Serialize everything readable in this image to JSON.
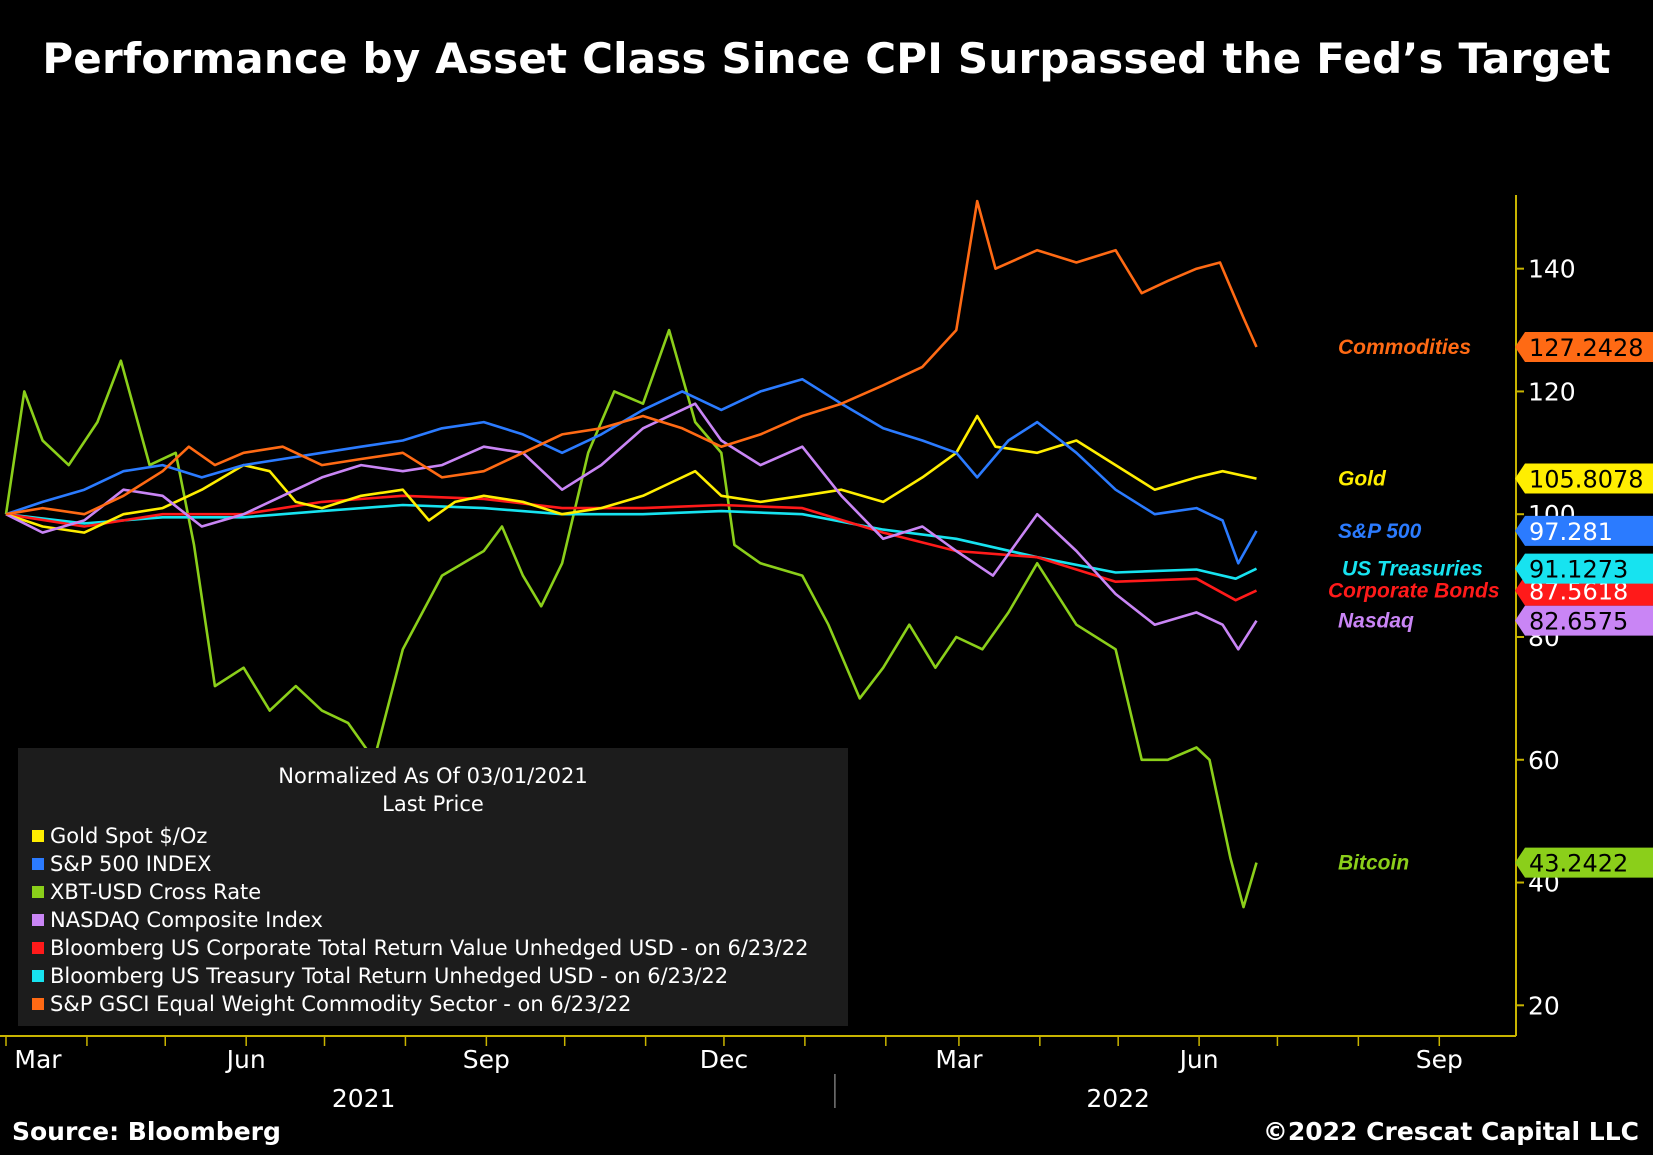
{
  "chart_data": {
    "type": "line",
    "title": "Performance by Asset Class Since CPI Surpassed the Fed’s Target",
    "y_axis": {
      "side": "right",
      "ylim": [
        15,
        152
      ],
      "ticks": [
        20,
        40,
        60,
        80,
        100,
        120,
        140
      ]
    },
    "x_axis": {
      "start": "2021-03-01",
      "end": "2022-09-30",
      "month_ticks": [
        {
          "date": "2021-03-01",
          "label": "Mar"
        },
        {
          "date": "2021-06-01",
          "label": "Jun"
        },
        {
          "date": "2021-09-01",
          "label": "Sep"
        },
        {
          "date": "2021-12-01",
          "label": "Dec"
        },
        {
          "date": "2022-03-01",
          "label": "Mar"
        },
        {
          "date": "2022-06-01",
          "label": "Jun"
        },
        {
          "date": "2022-09-01",
          "label": "Sep"
        }
      ],
      "years": [
        {
          "date": "2021-07-16",
          "label": "2021"
        },
        {
          "date": "2022-05-01",
          "label": "2022"
        }
      ],
      "year_divider": "2022-01-01"
    },
    "legend": {
      "header": [
        "Normalized As Of 03/01/2021",
        "Last Price"
      ],
      "placement": "bottom-left"
    },
    "series": [
      {
        "key": "gold",
        "legend": "Gold Spot $/Oz",
        "label": "Gold",
        "last_value": "105.8078",
        "color": "#ffee00",
        "tag_text_color": "#000000",
        "points": [
          [
            "2021-03-01",
            100
          ],
          [
            "2021-03-15",
            98
          ],
          [
            "2021-03-31",
            97
          ],
          [
            "2021-04-15",
            100
          ],
          [
            "2021-04-30",
            101
          ],
          [
            "2021-05-15",
            104
          ],
          [
            "2021-05-31",
            108
          ],
          [
            "2021-06-10",
            107
          ],
          [
            "2021-06-20",
            102
          ],
          [
            "2021-06-30",
            101
          ],
          [
            "2021-07-15",
            103
          ],
          [
            "2021-07-31",
            104
          ],
          [
            "2021-08-10",
            99
          ],
          [
            "2021-08-20",
            102
          ],
          [
            "2021-08-31",
            103
          ],
          [
            "2021-09-15",
            102
          ],
          [
            "2021-09-30",
            100
          ],
          [
            "2021-10-15",
            101
          ],
          [
            "2021-10-31",
            103
          ],
          [
            "2021-11-10",
            105
          ],
          [
            "2021-11-20",
            107
          ],
          [
            "2021-11-30",
            103
          ],
          [
            "2021-12-15",
            102
          ],
          [
            "2021-12-31",
            103
          ],
          [
            "2022-01-15",
            104
          ],
          [
            "2022-01-31",
            102
          ],
          [
            "2022-02-15",
            106
          ],
          [
            "2022-02-28",
            110
          ],
          [
            "2022-03-08",
            116
          ],
          [
            "2022-03-15",
            111
          ],
          [
            "2022-03-31",
            110
          ],
          [
            "2022-04-15",
            112
          ],
          [
            "2022-04-30",
            108
          ],
          [
            "2022-05-15",
            104
          ],
          [
            "2022-05-31",
            106
          ],
          [
            "2022-06-10",
            107
          ],
          [
            "2022-06-23",
            105.8078
          ]
        ]
      },
      {
        "key": "sp500",
        "legend": "S&P 500 INDEX",
        "label": "S&P 500",
        "last_value": "97.281",
        "color": "#2b7bff",
        "tag_text_color": "#ffffff",
        "points": [
          [
            "2021-03-01",
            100
          ],
          [
            "2021-03-15",
            102
          ],
          [
            "2021-03-31",
            104
          ],
          [
            "2021-04-15",
            107
          ],
          [
            "2021-04-30",
            108
          ],
          [
            "2021-05-15",
            106
          ],
          [
            "2021-05-31",
            108
          ],
          [
            "2021-06-15",
            109
          ],
          [
            "2021-06-30",
            110
          ],
          [
            "2021-07-15",
            111
          ],
          [
            "2021-07-31",
            112
          ],
          [
            "2021-08-15",
            114
          ],
          [
            "2021-08-31",
            115
          ],
          [
            "2021-09-15",
            113
          ],
          [
            "2021-09-30",
            110
          ],
          [
            "2021-10-15",
            113
          ],
          [
            "2021-10-31",
            117
          ],
          [
            "2021-11-15",
            120
          ],
          [
            "2021-11-30",
            117
          ],
          [
            "2021-12-15",
            120
          ],
          [
            "2021-12-31",
            122
          ],
          [
            "2022-01-15",
            118
          ],
          [
            "2022-01-31",
            114
          ],
          [
            "2022-02-15",
            112
          ],
          [
            "2022-02-28",
            110
          ],
          [
            "2022-03-08",
            106
          ],
          [
            "2022-03-20",
            112
          ],
          [
            "2022-03-31",
            115
          ],
          [
            "2022-04-15",
            110
          ],
          [
            "2022-04-30",
            104
          ],
          [
            "2022-05-15",
            100
          ],
          [
            "2022-05-31",
            101
          ],
          [
            "2022-06-10",
            99
          ],
          [
            "2022-06-16",
            92
          ],
          [
            "2022-06-23",
            97.281
          ]
        ]
      },
      {
        "key": "bitcoin",
        "legend": "XBT-USD Cross Rate",
        "label": "Bitcoin",
        "last_value": "43.2422",
        "color": "#8bcf1a",
        "tag_text_color": "#000000",
        "points": [
          [
            "2021-03-01",
            100
          ],
          [
            "2021-03-08",
            120
          ],
          [
            "2021-03-15",
            112
          ],
          [
            "2021-03-25",
            108
          ],
          [
            "2021-04-05",
            115
          ],
          [
            "2021-04-14",
            125
          ],
          [
            "2021-04-25",
            108
          ],
          [
            "2021-05-05",
            110
          ],
          [
            "2021-05-12",
            95
          ],
          [
            "2021-05-20",
            72
          ],
          [
            "2021-05-31",
            75
          ],
          [
            "2021-06-10",
            68
          ],
          [
            "2021-06-20",
            72
          ],
          [
            "2021-06-30",
            68
          ],
          [
            "2021-07-10",
            66
          ],
          [
            "2021-07-20",
            60
          ],
          [
            "2021-07-31",
            78
          ],
          [
            "2021-08-15",
            90
          ],
          [
            "2021-08-31",
            94
          ],
          [
            "2021-09-07",
            98
          ],
          [
            "2021-09-15",
            90
          ],
          [
            "2021-09-22",
            85
          ],
          [
            "2021-09-30",
            92
          ],
          [
            "2021-10-10",
            110
          ],
          [
            "2021-10-20",
            120
          ],
          [
            "2021-10-31",
            118
          ],
          [
            "2021-11-10",
            130
          ],
          [
            "2021-11-20",
            115
          ],
          [
            "2021-11-30",
            110
          ],
          [
            "2021-12-05",
            95
          ],
          [
            "2021-12-15",
            92
          ],
          [
            "2021-12-31",
            90
          ],
          [
            "2022-01-10",
            82
          ],
          [
            "2022-01-22",
            70
          ],
          [
            "2022-01-31",
            75
          ],
          [
            "2022-02-10",
            82
          ],
          [
            "2022-02-20",
            75
          ],
          [
            "2022-02-28",
            80
          ],
          [
            "2022-03-10",
            78
          ],
          [
            "2022-03-20",
            84
          ],
          [
            "2022-03-31",
            92
          ],
          [
            "2022-04-15",
            82
          ],
          [
            "2022-04-30",
            78
          ],
          [
            "2022-05-10",
            60
          ],
          [
            "2022-05-20",
            60
          ],
          [
            "2022-05-31",
            62
          ],
          [
            "2022-06-05",
            60
          ],
          [
            "2022-06-13",
            44
          ],
          [
            "2022-06-18",
            36
          ],
          [
            "2022-06-23",
            43.2422
          ]
        ]
      },
      {
        "key": "nasdaq",
        "legend": "NASDAQ Composite Index",
        "label": "Nasdaq",
        "last_value": "82.6575",
        "color": "#c985f5",
        "tag_text_color": "#000000",
        "points": [
          [
            "2021-03-01",
            100
          ],
          [
            "2021-03-15",
            97
          ],
          [
            "2021-03-31",
            99
          ],
          [
            "2021-04-15",
            104
          ],
          [
            "2021-04-30",
            103
          ],
          [
            "2021-05-15",
            98
          ],
          [
            "2021-05-31",
            100
          ],
          [
            "2021-06-15",
            103
          ],
          [
            "2021-06-30",
            106
          ],
          [
            "2021-07-15",
            108
          ],
          [
            "2021-07-31",
            107
          ],
          [
            "2021-08-15",
            108
          ],
          [
            "2021-08-31",
            111
          ],
          [
            "2021-09-15",
            110
          ],
          [
            "2021-09-30",
            104
          ],
          [
            "2021-10-15",
            108
          ],
          [
            "2021-10-31",
            114
          ],
          [
            "2021-11-20",
            118
          ],
          [
            "2021-11-30",
            112
          ],
          [
            "2021-12-15",
            108
          ],
          [
            "2021-12-31",
            111
          ],
          [
            "2022-01-15",
            103
          ],
          [
            "2022-01-31",
            96
          ],
          [
            "2022-02-15",
            98
          ],
          [
            "2022-02-28",
            94
          ],
          [
            "2022-03-14",
            90
          ],
          [
            "2022-03-31",
            100
          ],
          [
            "2022-04-15",
            94
          ],
          [
            "2022-04-30",
            87
          ],
          [
            "2022-05-15",
            82
          ],
          [
            "2022-05-31",
            84
          ],
          [
            "2022-06-10",
            82
          ],
          [
            "2022-06-16",
            78
          ],
          [
            "2022-06-23",
            82.6575
          ]
        ]
      },
      {
        "key": "corp",
        "legend": "Bloomberg US Corporate Total Return Value Unhedged USD -  on 6/23/22",
        "label": "Corporate Bonds",
        "last_value": "87.5618",
        "color": "#ff1a1a",
        "tag_text_color": "#ffffff",
        "points": [
          [
            "2021-03-01",
            100
          ],
          [
            "2021-03-31",
            98
          ],
          [
            "2021-04-30",
            100
          ],
          [
            "2021-05-31",
            100
          ],
          [
            "2021-06-30",
            102
          ],
          [
            "2021-07-31",
            103
          ],
          [
            "2021-08-31",
            102.5
          ],
          [
            "2021-09-30",
            101
          ],
          [
            "2021-10-31",
            101
          ],
          [
            "2021-11-30",
            101.5
          ],
          [
            "2021-12-31",
            101
          ],
          [
            "2022-01-31",
            97
          ],
          [
            "2022-02-28",
            94
          ],
          [
            "2022-03-31",
            93
          ],
          [
            "2022-04-30",
            89
          ],
          [
            "2022-05-31",
            89.5
          ],
          [
            "2022-06-15",
            86
          ],
          [
            "2022-06-23",
            87.5618
          ]
        ]
      },
      {
        "key": "treasury",
        "legend": "Bloomberg US Treasury Total Return Unhedged USD -  on 6/23/22",
        "label": "US Treasuries",
        "last_value": "91.1273",
        "color": "#17e3f0",
        "tag_text_color": "#000000",
        "points": [
          [
            "2021-03-01",
            100
          ],
          [
            "2021-03-31",
            98.5
          ],
          [
            "2021-04-30",
            99.5
          ],
          [
            "2021-05-31",
            99.5
          ],
          [
            "2021-06-30",
            100.5
          ],
          [
            "2021-07-31",
            101.5
          ],
          [
            "2021-08-31",
            101
          ],
          [
            "2021-09-30",
            100
          ],
          [
            "2021-10-31",
            100
          ],
          [
            "2021-11-30",
            100.5
          ],
          [
            "2021-12-31",
            100
          ],
          [
            "2022-01-31",
            97.5
          ],
          [
            "2022-02-28",
            96
          ],
          [
            "2022-03-31",
            93
          ],
          [
            "2022-04-30",
            90.5
          ],
          [
            "2022-05-31",
            91
          ],
          [
            "2022-06-15",
            89.5
          ],
          [
            "2022-06-23",
            91.1273
          ]
        ]
      },
      {
        "key": "commod",
        "legend": "S&P GSCI Equal Weight Commodity Sector -  on 6/23/22",
        "label": "Commodities",
        "last_value": "127.2428",
        "color": "#ff6a14",
        "tag_text_color": "#000000",
        "points": [
          [
            "2021-03-01",
            100
          ],
          [
            "2021-03-15",
            101
          ],
          [
            "2021-03-31",
            100
          ],
          [
            "2021-04-15",
            103
          ],
          [
            "2021-04-30",
            107
          ],
          [
            "2021-05-10",
            111
          ],
          [
            "2021-05-20",
            108
          ],
          [
            "2021-05-31",
            110
          ],
          [
            "2021-06-15",
            111
          ],
          [
            "2021-06-30",
            108
          ],
          [
            "2021-07-15",
            109
          ],
          [
            "2021-07-31",
            110
          ],
          [
            "2021-08-15",
            106
          ],
          [
            "2021-08-31",
            107
          ],
          [
            "2021-09-15",
            110
          ],
          [
            "2021-09-30",
            113
          ],
          [
            "2021-10-15",
            114
          ],
          [
            "2021-10-31",
            116
          ],
          [
            "2021-11-15",
            114
          ],
          [
            "2021-11-30",
            111
          ],
          [
            "2021-12-15",
            113
          ],
          [
            "2021-12-31",
            116
          ],
          [
            "2022-01-15",
            118
          ],
          [
            "2022-01-31",
            121
          ],
          [
            "2022-02-15",
            124
          ],
          [
            "2022-02-28",
            130
          ],
          [
            "2022-03-08",
            151
          ],
          [
            "2022-03-15",
            140
          ],
          [
            "2022-03-31",
            143
          ],
          [
            "2022-04-15",
            141
          ],
          [
            "2022-04-30",
            143
          ],
          [
            "2022-05-10",
            136
          ],
          [
            "2022-05-20",
            138
          ],
          [
            "2022-05-31",
            140
          ],
          [
            "2022-06-09",
            141
          ],
          [
            "2022-06-18",
            132
          ],
          [
            "2022-06-23",
            127.2428
          ]
        ]
      }
    ]
  },
  "footer": {
    "source": "Source: Bloomberg",
    "copyright": "©2022 Crescat Capital LLC"
  }
}
